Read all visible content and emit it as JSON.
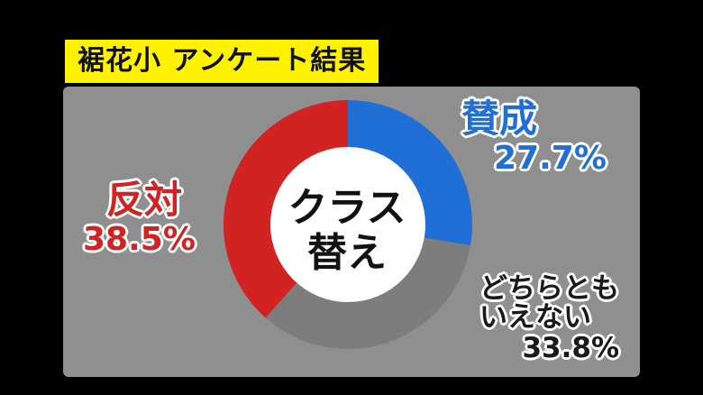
{
  "title": "裾花小 アンケート結果",
  "center_label": [
    "クラス",
    "替え"
  ],
  "chart_data": {
    "type": "pie",
    "title": "裾花小 アンケート結果",
    "series": [
      {
        "name": "賛成",
        "value": 27.7,
        "label": "27.7%",
        "color": "#1f6fd6"
      },
      {
        "name": "どちらともいえない",
        "value": 33.8,
        "label": "33.8%",
        "color": "#7d7d7d"
      },
      {
        "name": "反対",
        "value": 38.5,
        "label": "38.5%",
        "color": "#d32222"
      }
    ]
  },
  "labels": {
    "agree": {
      "name": "賛成",
      "pct": "27.7%"
    },
    "oppose": {
      "name": "反対",
      "pct": "38.5%"
    },
    "neutral": {
      "name_line1": "どちらとも",
      "name_line2": "いえない",
      "pct": "33.8%"
    }
  }
}
